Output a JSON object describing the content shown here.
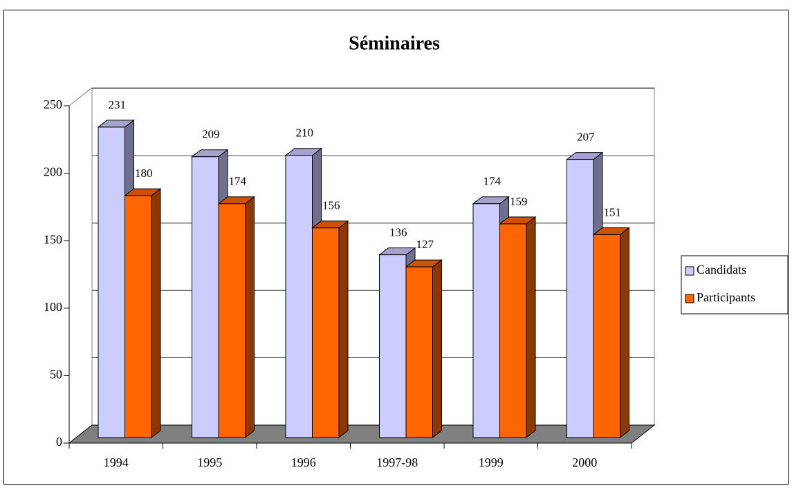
{
  "chart_data": {
    "type": "bar3d",
    "title": "Séminaires",
    "categories": [
      "1994",
      "1995",
      "1996",
      "1997-98",
      "1999",
      "2000"
    ],
    "series": [
      {
        "name": "Candidats",
        "color": "#ccccff",
        "values": [
          231,
          209,
          210,
          136,
          174,
          207
        ]
      },
      {
        "name": "Participants",
        "color": "#ff6600",
        "values": [
          180,
          174,
          156,
          127,
          159,
          151
        ]
      }
    ],
    "ylim": [
      0,
      250
    ],
    "yticks": [
      0,
      50,
      100,
      150,
      200,
      250
    ],
    "grid": true,
    "legend": "right"
  }
}
